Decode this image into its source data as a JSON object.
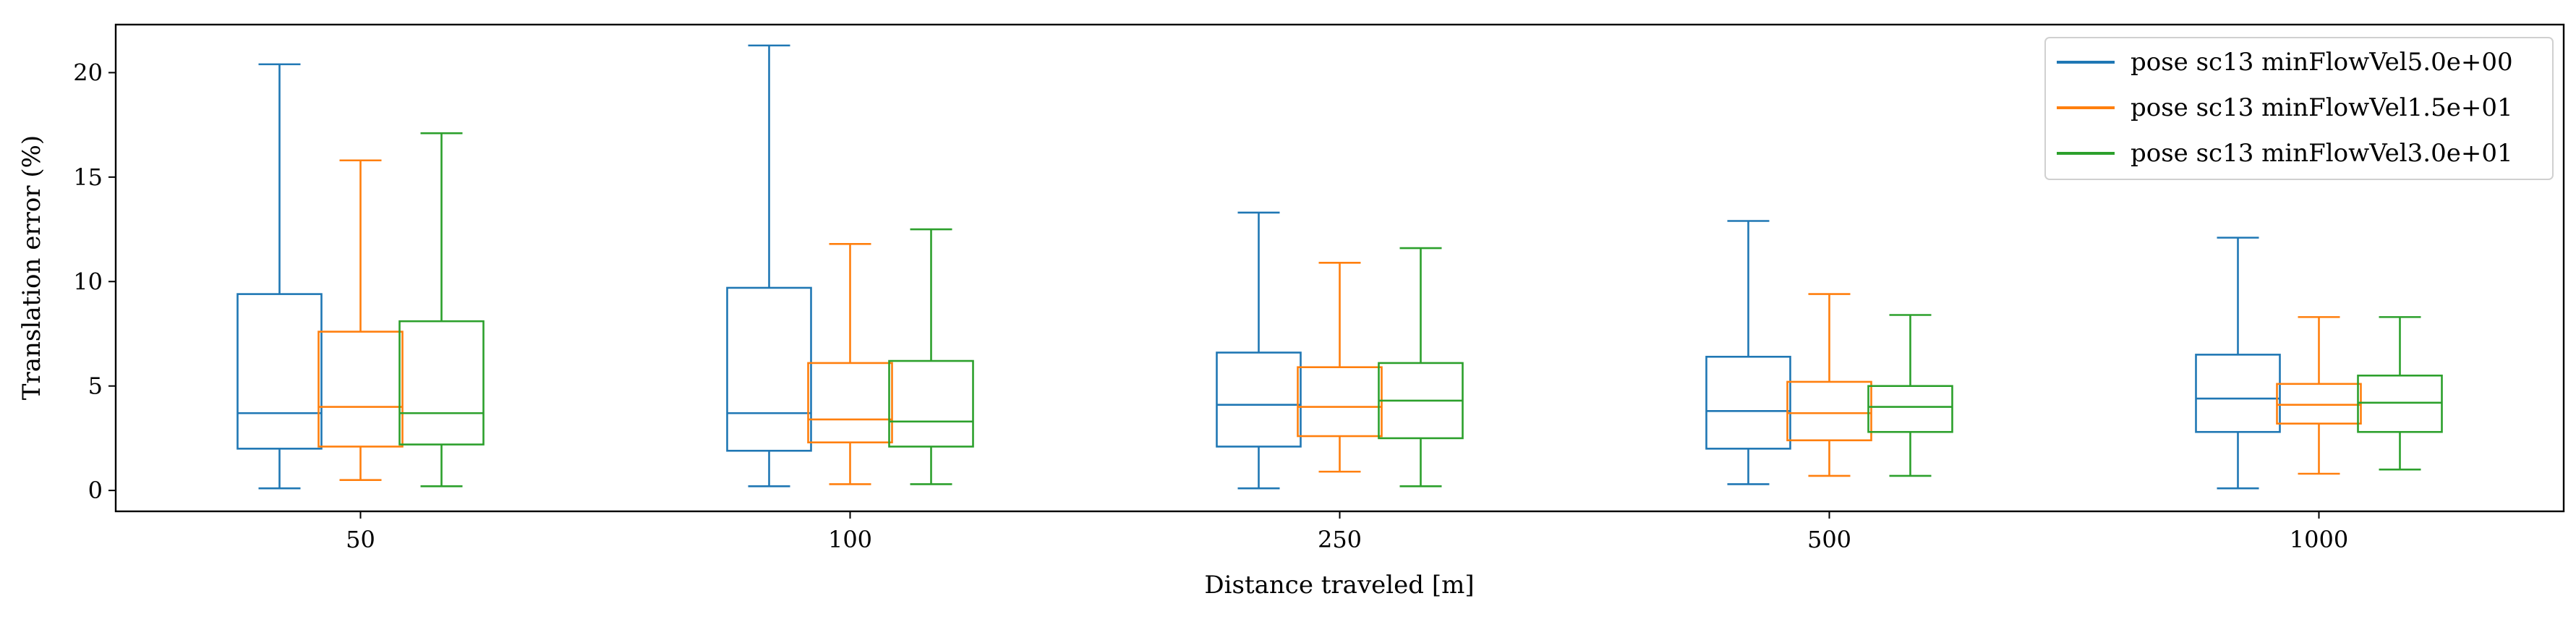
{
  "chart_data": {
    "type": "box",
    "xlabel": "Distance traveled [m]",
    "ylabel": "Translation error (%)",
    "ylim": [
      -1,
      22.3
    ],
    "yticks": [
      0,
      5,
      10,
      15,
      20
    ],
    "categories": [
      "50",
      "100",
      "250",
      "500",
      "1000"
    ],
    "legend_position": "top-right",
    "series": [
      {
        "name": "pose sc13 minFlowVel5.0e+00",
        "color": "#1f77b4",
        "boxes": [
          {
            "whislo": 0.1,
            "q1": 2.0,
            "med": 3.7,
            "q3": 9.4,
            "whishi": 20.4
          },
          {
            "whislo": 0.2,
            "q1": 1.9,
            "med": 3.7,
            "q3": 9.7,
            "whishi": 21.3
          },
          {
            "whislo": 0.1,
            "q1": 2.1,
            "med": 4.1,
            "q3": 6.6,
            "whishi": 13.3
          },
          {
            "whislo": 0.3,
            "q1": 2.0,
            "med": 3.8,
            "q3": 6.4,
            "whishi": 12.9
          },
          {
            "whislo": 0.1,
            "q1": 2.8,
            "med": 4.4,
            "q3": 6.5,
            "whishi": 12.1
          }
        ]
      },
      {
        "name": "pose sc13 minFlowVel1.5e+01",
        "color": "#ff7f0e",
        "boxes": [
          {
            "whislo": 0.5,
            "q1": 2.1,
            "med": 4.0,
            "q3": 7.6,
            "whishi": 15.8
          },
          {
            "whislo": 0.3,
            "q1": 2.3,
            "med": 3.4,
            "q3": 6.1,
            "whishi": 11.8
          },
          {
            "whislo": 0.9,
            "q1": 2.6,
            "med": 4.0,
            "q3": 5.9,
            "whishi": 10.9
          },
          {
            "whislo": 0.7,
            "q1": 2.4,
            "med": 3.7,
            "q3": 5.2,
            "whishi": 9.4
          },
          {
            "whislo": 0.8,
            "q1": 3.2,
            "med": 4.1,
            "q3": 5.1,
            "whishi": 8.3
          }
        ]
      },
      {
        "name": "pose sc13 minFlowVel3.0e+01",
        "color": "#2ca02c",
        "boxes": [
          {
            "whislo": 0.2,
            "q1": 2.2,
            "med": 3.7,
            "q3": 8.1,
            "whishi": 17.1
          },
          {
            "whislo": 0.3,
            "q1": 2.1,
            "med": 3.3,
            "q3": 6.2,
            "whishi": 12.5
          },
          {
            "whislo": 0.2,
            "q1": 2.5,
            "med": 4.3,
            "q3": 6.1,
            "whishi": 11.6
          },
          {
            "whislo": 0.7,
            "q1": 2.8,
            "med": 4.0,
            "q3": 5.0,
            "whishi": 8.4
          },
          {
            "whislo": 1.0,
            "q1": 2.8,
            "med": 4.2,
            "q3": 5.5,
            "whishi": 8.3
          }
        ]
      }
    ]
  }
}
